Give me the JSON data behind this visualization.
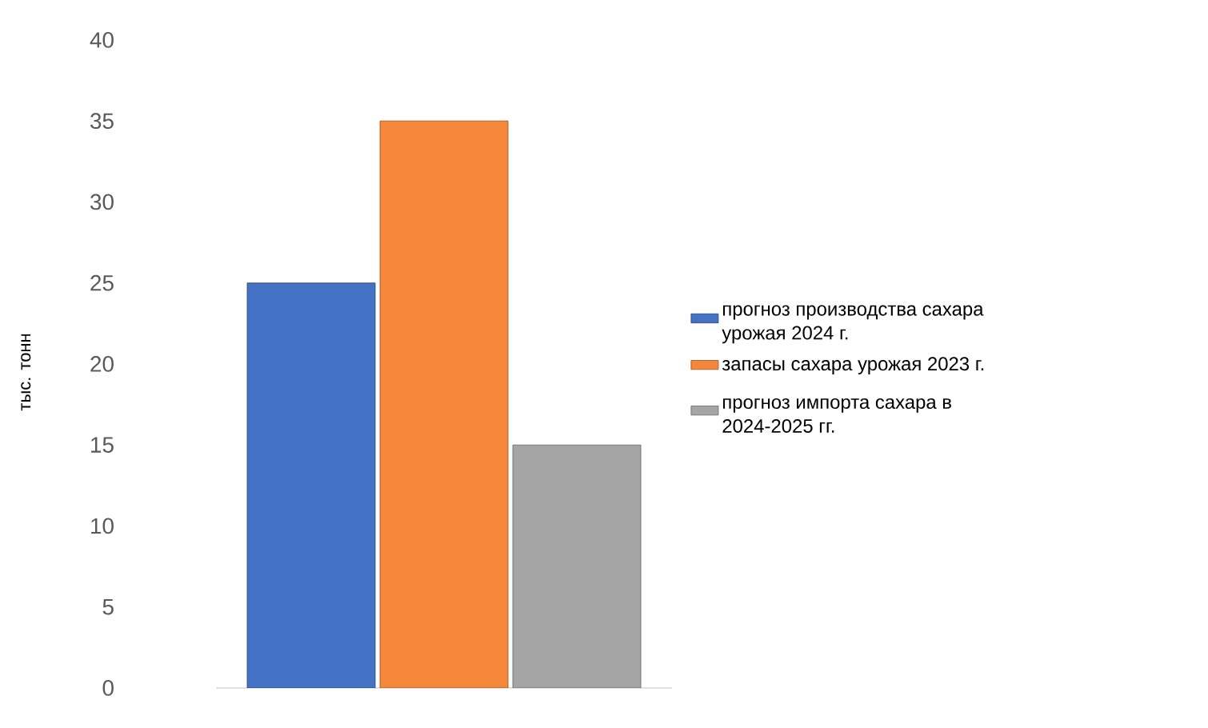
{
  "chart_data": {
    "type": "bar",
    "ylabel": "тыс. тонн",
    "categories": [
      null
    ],
    "series": [
      {
        "name": "прогноз производства сахара урожая 2024 г.",
        "color": "#4472c4",
        "values": [
          25
        ]
      },
      {
        "name": "запасы сахара урожая  2023 г.",
        "color": "#f5873a",
        "values": [
          35
        ]
      },
      {
        "name": "прогноз импорта сахара в 2024-2025 гг.",
        "color": "#a5a5a5",
        "values": [
          15
        ]
      }
    ],
    "ylim": [
      0,
      40
    ],
    "yticks": [
      0,
      5,
      10,
      15,
      20,
      25,
      30,
      35,
      40
    ],
    "grid": false,
    "legend": "right"
  }
}
